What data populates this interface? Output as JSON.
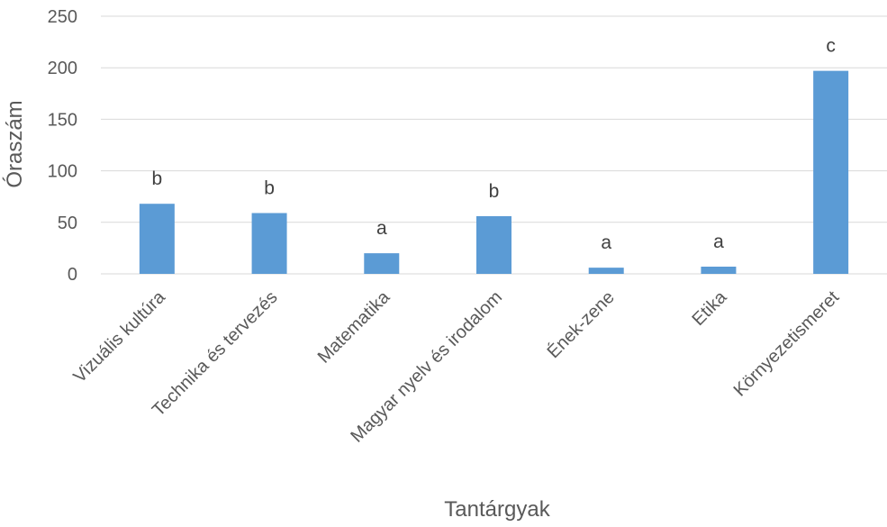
{
  "chart_data": {
    "type": "bar",
    "title": "",
    "xlabel": "Tantárgyak",
    "ylabel": "Óraszám",
    "ylim": [
      0,
      250
    ],
    "yticks": [
      0,
      50,
      100,
      150,
      200,
      250
    ],
    "grid": true,
    "legend": "none",
    "bar_color": "#5b9bd5",
    "categories": [
      "Vizuális kultúra",
      "Technika és tervezés",
      "Matematika",
      "Magyar nyelv és irodalom",
      "Ének-zene",
      "Etika",
      "Környezetismeret"
    ],
    "values": [
      68,
      59,
      20,
      56,
      6,
      7,
      197
    ],
    "annotations": [
      "b",
      "b",
      "a",
      "b",
      "a",
      "a",
      "c"
    ]
  }
}
